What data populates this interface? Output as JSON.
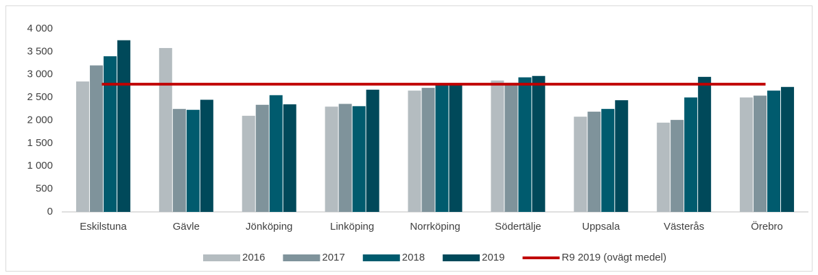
{
  "chart_data": {
    "type": "bar",
    "categories": [
      "Eskilstuna",
      "Gävle",
      "Jönköping",
      "Linköping",
      "Norrköping",
      "Södertälje",
      "Uppsala",
      "Västerås",
      "Örebro"
    ],
    "series": [
      {
        "name": "2016",
        "color": "#b4bcc0",
        "values": [
          2850,
          3580,
          2100,
          2300,
          2650,
          2870,
          2080,
          1950,
          2500
        ]
      },
      {
        "name": "2017",
        "color": "#7f939b",
        "values": [
          3200,
          2250,
          2340,
          2360,
          2710,
          2820,
          2190,
          2010,
          2540
        ]
      },
      {
        "name": "2018",
        "color": "#005b6e",
        "values": [
          3400,
          2230,
          2550,
          2310,
          2780,
          2940,
          2250,
          2500,
          2650
        ]
      },
      {
        "name": "2019",
        "color": "#00495a",
        "values": [
          3750,
          2450,
          2350,
          2670,
          2780,
          2970,
          2440,
          2950,
          2730
        ]
      },
      {
        "name": "R9 2019 (ovägt medel)",
        "color": "#c00000",
        "type": "line",
        "values": [
          2790,
          2790,
          2790,
          2790,
          2790,
          2790,
          2790,
          2790,
          2790
        ]
      }
    ],
    "ylim": [
      0,
      4000
    ],
    "yticks": [
      0,
      500,
      {
        "value": 1000,
        "label": "1 000"
      },
      {
        "value": 1500,
        "label": "1 500"
      },
      {
        "value": 2000,
        "label": "2 000"
      },
      {
        "value": 2500,
        "label": "2 500"
      },
      {
        "value": 3000,
        "label": "3 000"
      },
      {
        "value": 3500,
        "label": "3 500"
      },
      {
        "value": 4000,
        "label": "4 000"
      }
    ],
    "grid": false,
    "legend": "bottom"
  }
}
